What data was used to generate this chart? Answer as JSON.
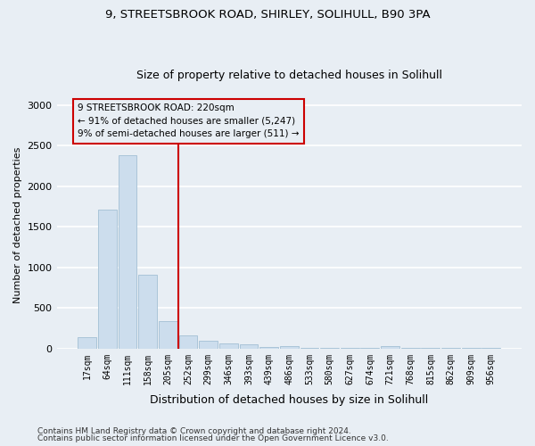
{
  "title_line1": "9, STREETSBROOK ROAD, SHIRLEY, SOLIHULL, B90 3PA",
  "title_line2": "Size of property relative to detached houses in Solihull",
  "xlabel": "Distribution of detached houses by size in Solihull",
  "ylabel": "Number of detached properties",
  "footer_line1": "Contains HM Land Registry data © Crown copyright and database right 2024.",
  "footer_line2": "Contains public sector information licensed under the Open Government Licence v3.0.",
  "annotation_line1": "9 STREETSBROOK ROAD: 220sqm",
  "annotation_line2": "← 91% of detached houses are smaller (5,247)",
  "annotation_line3": "9% of semi-detached houses are larger (511) →",
  "bar_labels": [
    "17sqm",
    "64sqm",
    "111sqm",
    "158sqm",
    "205sqm",
    "252sqm",
    "299sqm",
    "346sqm",
    "393sqm",
    "439sqm",
    "486sqm",
    "533sqm",
    "580sqm",
    "627sqm",
    "674sqm",
    "721sqm",
    "768sqm",
    "815sqm",
    "862sqm",
    "909sqm",
    "956sqm"
  ],
  "bar_values": [
    140,
    1710,
    2380,
    910,
    340,
    160,
    95,
    65,
    50,
    20,
    30,
    5,
    5,
    5,
    5,
    30,
    5,
    5,
    5,
    5,
    5
  ],
  "bar_color": "#ccdded",
  "bar_edge_color": "#aac4d8",
  "vline_x": 4.5,
  "vline_color": "#cc0000",
  "annotation_box_color": "#cc0000",
  "ylim": [
    0,
    3050
  ],
  "yticks": [
    0,
    500,
    1000,
    1500,
    2000,
    2500,
    3000
  ],
  "bg_color": "#e8eef4",
  "grid_color": "#ffffff",
  "title_fontsize": 9.5,
  "subtitle_fontsize": 9
}
